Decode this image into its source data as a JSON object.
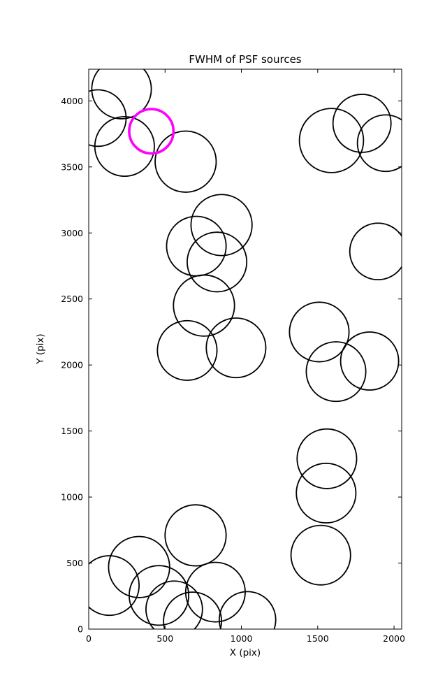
{
  "chart_data": {
    "type": "scatter",
    "title": "FWHM of PSF sources",
    "xlabel": "X (pix)",
    "ylabel": "Y (pix)",
    "xlim": [
      0,
      2050
    ],
    "ylim": [
      0,
      4240
    ],
    "x_ticks": [
      0,
      500,
      1000,
      1500,
      2000
    ],
    "y_ticks": [
      0,
      500,
      1000,
      1500,
      2000,
      2500,
      3000,
      3500,
      4000
    ],
    "grid": "off",
    "legend": "none",
    "marker_color": "#000000",
    "highlight_color": "#ff00ff",
    "circles": [
      {
        "x": 215,
        "y": 4090,
        "r": 195
      },
      {
        "x": 60,
        "y": 3870,
        "r": 185
      },
      {
        "x": 235,
        "y": 3655,
        "r": 195
      },
      {
        "x": 635,
        "y": 3540,
        "r": 200
      },
      {
        "x": 1590,
        "y": 3700,
        "r": 210
      },
      {
        "x": 1790,
        "y": 3830,
        "r": 190
      },
      {
        "x": 1945,
        "y": 3680,
        "r": 185
      },
      {
        "x": 870,
        "y": 3060,
        "r": 200
      },
      {
        "x": 705,
        "y": 2900,
        "r": 195
      },
      {
        "x": 840,
        "y": 2780,
        "r": 195
      },
      {
        "x": 1895,
        "y": 2860,
        "r": 185
      },
      {
        "x": 755,
        "y": 2450,
        "r": 200
      },
      {
        "x": 645,
        "y": 2110,
        "r": 195
      },
      {
        "x": 965,
        "y": 2130,
        "r": 195
      },
      {
        "x": 1510,
        "y": 2250,
        "r": 195
      },
      {
        "x": 1620,
        "y": 1950,
        "r": 195
      },
      {
        "x": 1840,
        "y": 2030,
        "r": 190
      },
      {
        "x": 1560,
        "y": 1290,
        "r": 195
      },
      {
        "x": 1555,
        "y": 1030,
        "r": 195
      },
      {
        "x": 1520,
        "y": 560,
        "r": 195
      },
      {
        "x": 700,
        "y": 710,
        "r": 200
      },
      {
        "x": 330,
        "y": 470,
        "r": 200
      },
      {
        "x": 135,
        "y": 330,
        "r": 195
      },
      {
        "x": 460,
        "y": 255,
        "r": 195
      },
      {
        "x": 560,
        "y": 150,
        "r": 185
      },
      {
        "x": 830,
        "y": 280,
        "r": 195
      },
      {
        "x": 680,
        "y": 60,
        "r": 190
      },
      {
        "x": 1040,
        "y": 70,
        "r": 185
      },
      {
        "x": 410,
        "y": 3770,
        "r": 145,
        "highlight": true
      }
    ]
  }
}
